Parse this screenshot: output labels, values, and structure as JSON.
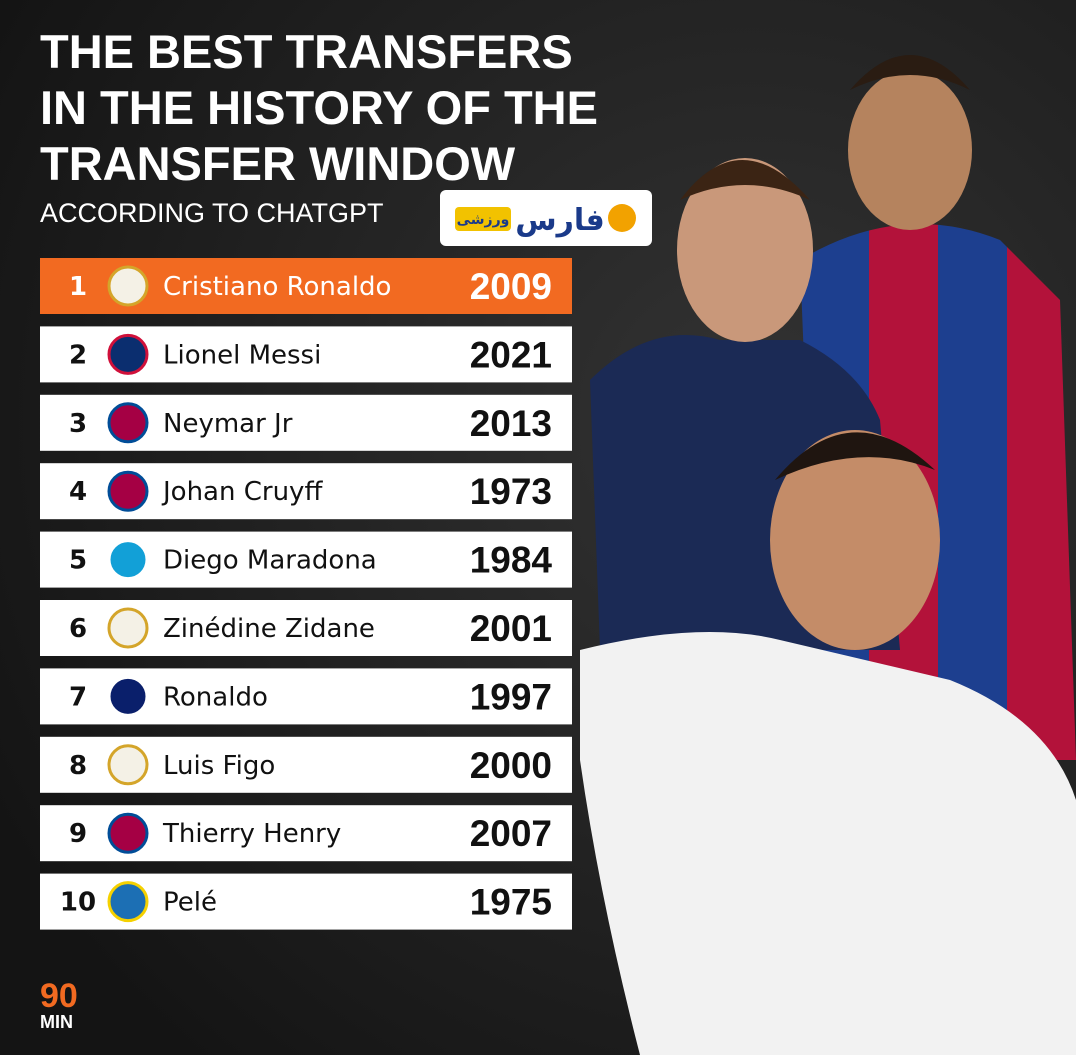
{
  "header": {
    "title_lines": [
      "THE BEST TRANSFERS",
      "IN THE HISTORY OF THE",
      "TRANSFER WINDOW"
    ],
    "subtitle": "ACCORDING TO CHATGPT"
  },
  "source_badge": {
    "brand": "فارس",
    "section": "ورزشی"
  },
  "table": {
    "rows": [
      [
        1,
        "Cristiano Ronaldo",
        2009
      ],
      [
        2,
        "Lionel Messi",
        2021
      ],
      [
        3,
        "Neymar Jr",
        2013
      ],
      [
        4,
        "Johan Cruyff",
        1973
      ],
      [
        5,
        "Diego Maradona",
        1984
      ],
      [
        6,
        "Zinédine Zidane",
        2001
      ],
      [
        7,
        "Ronaldo",
        1997
      ],
      [
        8,
        "Luis Figo",
        2000
      ],
      [
        9,
        "Thierry Henry",
        2007
      ],
      [
        10,
        "Pelé",
        1975
      ]
    ]
  },
  "footer": {
    "logo_top": "90",
    "logo_bottom": "MIN"
  }
}
